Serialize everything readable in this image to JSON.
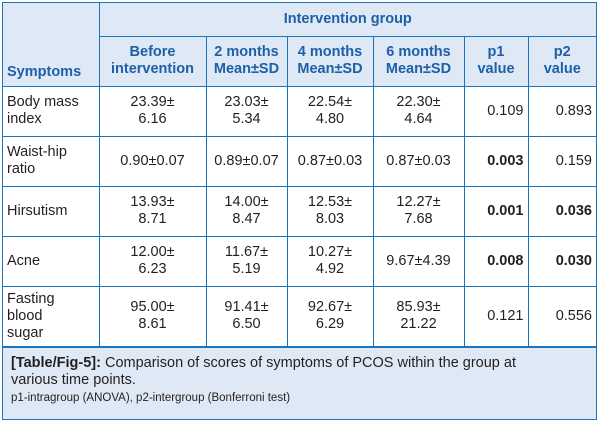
{
  "table": {
    "group_header": "Intervention group",
    "columns": {
      "symptoms": "Symptoms",
      "before_l1": "Before",
      "before_l2": "intervention",
      "m2_l1": "2 months",
      "m2_l2": "Mean±SD",
      "m4_l1": "4 months",
      "m4_l2": "Mean±SD",
      "m6_l1": "6 months",
      "m6_l2": "Mean±SD",
      "p1_l1": "p1",
      "p1_l2": "value",
      "p2_l1": "p2",
      "p2_l2": "value"
    },
    "rows": [
      {
        "symptom_l1": "Body mass",
        "symptom_l2": "index",
        "symptom_l3": "",
        "before_l1": "23.39±",
        "before_l2": "6.16",
        "m2_l1": "23.03±",
        "m2_l2": "5.34",
        "m4_l1": "22.54±",
        "m4_l2": "4.80",
        "m6_l1": "22.30±",
        "m6_l2": "4.64",
        "p1": "0.109",
        "p2": "0.893"
      },
      {
        "symptom_l1": "Waist-hip",
        "symptom_l2": "ratio",
        "symptom_l3": "",
        "before": "0.90±0.07",
        "m2": "0.89±0.07",
        "m4": "0.87±0.03",
        "m6": "0.87±0.03",
        "p1": "0.003",
        "p2": "0.159"
      },
      {
        "symptom": "Hirsutism",
        "before_l1": "13.93±",
        "before_l2": "8.71",
        "m2_l1": "14.00±",
        "m2_l2": "8.47",
        "m4_l1": "12.53±",
        "m4_l2": "8.03",
        "m6_l1": "12.27±",
        "m6_l2": "7.68",
        "p1": "0.001",
        "p2": "0.036"
      },
      {
        "symptom": "Acne",
        "before_l1": "12.00±",
        "before_l2": "6.23",
        "m2_l1": "11.67±",
        "m2_l2": "5.19",
        "m4_l1": "10.27±",
        "m4_l2": "4.92",
        "m6": "9.67±4.39",
        "p1": "0.008",
        "p2": "0.030"
      },
      {
        "symptom_l1": "Fasting",
        "symptom_l2": "blood",
        "symptom_l3": "sugar",
        "before_l1": "95.00±",
        "before_l2": "8.61",
        "m2_l1": "91.41±",
        "m2_l2": "6.50",
        "m4_l1": "92.67±",
        "m4_l2": "6.29",
        "m6_l1": "85.93±",
        "m6_l2": "21.22",
        "p1": "0.121",
        "p2": "0.556"
      }
    ]
  },
  "caption": {
    "tag": "[Table/Fig-5]:",
    "text_l1": " Comparison of scores of symptoms of PCOS within the group at",
    "text_l2": "various time points.",
    "footnote": "p1-intragroup (ANOVA), p2-intergroup (Bonferroni test)"
  },
  "colors": {
    "border": "#1b75bc",
    "header_bg": "#dfe9f5",
    "header_text": "#1e5fa8"
  }
}
